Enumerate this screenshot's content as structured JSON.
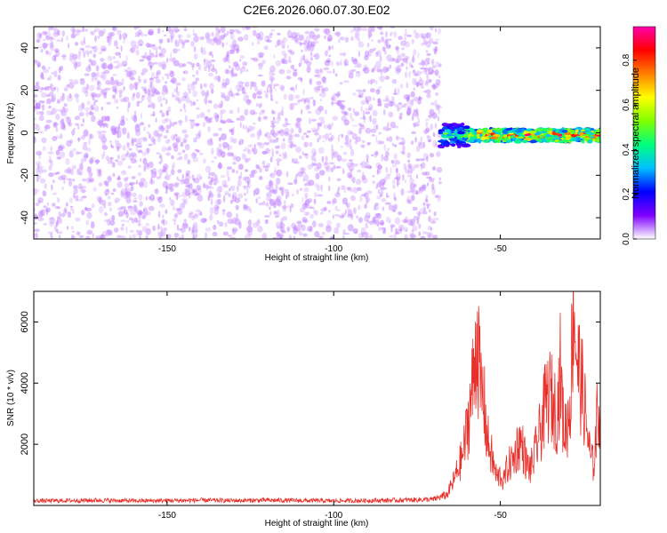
{
  "title": "C2E6.2026.060.07.30.E02",
  "chart_data": [
    {
      "type": "heatmap",
      "name": "spectrogram",
      "xlabel": "Height of straight line (km)",
      "ylabel": "Frequency (Hz)",
      "xlim": [
        -190,
        -20
      ],
      "ylim": [
        -50,
        50
      ],
      "xticks": [
        -150,
        -100,
        -50
      ],
      "xtick_labels": [
        "-150",
        "-100",
        "-50"
      ],
      "yticks": [
        -40,
        -20,
        0,
        20,
        40
      ],
      "ytick_labels": [
        "-40",
        "-20",
        "0",
        "20",
        "40"
      ],
      "noise_region": {
        "x_from": -190,
        "x_to": -68,
        "freq_from": -50,
        "freq_to": 50,
        "typical_amplitude": 0.2
      },
      "signal_band": {
        "x_from": -68,
        "x_to": -20,
        "center_freq": 0,
        "half_width_hz": 3,
        "peak_amplitude": 0.9
      },
      "colorbar": {
        "label": "Normalized spectral amplitude",
        "range": [
          0,
          0.95
        ],
        "ticks": [
          0.0,
          0.2,
          0.4,
          0.6,
          0.8
        ],
        "tick_labels": [
          "0.0",
          "0.2",
          "0.4",
          "0.6",
          "0.8"
        ],
        "colors": [
          "#ffffff",
          "#7f00ff",
          "#0000ff",
          "#00bfff",
          "#00ff7f",
          "#7fff00",
          "#ffff00",
          "#ff7f00",
          "#ff0000",
          "#ff00aa"
        ]
      }
    },
    {
      "type": "line",
      "name": "snr",
      "xlabel": "Height of straight line (km)",
      "ylabel": "SNR (10 * v/v)",
      "xlim": [
        -190,
        -20
      ],
      "ylim": [
        0,
        7000
      ],
      "xticks": [
        -150,
        -100,
        -50
      ],
      "xtick_labels": [
        "-150",
        "-100",
        "-50"
      ],
      "yticks": [
        2000,
        4000,
        6000
      ],
      "ytick_labels": [
        "2000",
        "4000",
        "6000"
      ],
      "color": "#e8302a",
      "series": [
        {
          "name": "SNR",
          "x": [
            -190,
            -180,
            -170,
            -160,
            -150,
            -140,
            -130,
            -120,
            -110,
            -100,
            -90,
            -80,
            -70,
            -66,
            -64,
            -62,
            -61,
            -60,
            -59,
            -58,
            -57,
            -56,
            -55,
            -54,
            -53,
            -52,
            -51,
            -50,
            -49,
            -48,
            -47,
            -46,
            -45,
            -44,
            -43,
            -42,
            -41,
            -40,
            -39,
            -38,
            -37,
            -36,
            -35,
            -34,
            -33,
            -32,
            -31,
            -30,
            -29,
            -28,
            -27,
            -26,
            -25,
            -24,
            -23,
            -22,
            -21,
            -20
          ],
          "y": [
            150,
            160,
            170,
            150,
            160,
            170,
            160,
            170,
            160,
            150,
            160,
            170,
            200,
            350,
            800,
            1400,
            1800,
            2500,
            3300,
            4200,
            5800,
            3800,
            3500,
            2200,
            1800,
            1300,
            900,
            1000,
            800,
            1200,
            1400,
            1500,
            1900,
            2100,
            1800,
            1300,
            1200,
            1500,
            2000,
            2400,
            3000,
            3500,
            3600,
            3300,
            3000,
            4400,
            2500,
            2600,
            3500,
            6900,
            4800,
            4200,
            3500,
            2500,
            1600,
            1300,
            2800,
            3400
          ]
        }
      ]
    }
  ]
}
